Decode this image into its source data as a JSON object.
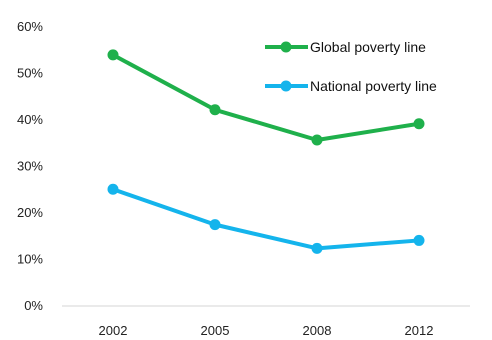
{
  "chart_data": {
    "type": "line",
    "categories": [
      "2002",
      "2005",
      "2008",
      "2012"
    ],
    "series": [
      {
        "name": "Global poverty line",
        "values": [
          54,
          42.2,
          35.7,
          39.2
        ],
        "color": "#1fb04b"
      },
      {
        "name": "National poverty line",
        "values": [
          25.1,
          17.5,
          12.4,
          14.1
        ],
        "color": "#14b4ec"
      }
    ],
    "y_ticks": [
      "0%",
      "10%",
      "20%",
      "30%",
      "40%",
      "50%",
      "60%"
    ],
    "ylim": [
      0,
      60
    ],
    "grid": false,
    "legend_position": "top-right",
    "title": "",
    "xlabel": "",
    "ylabel": ""
  }
}
